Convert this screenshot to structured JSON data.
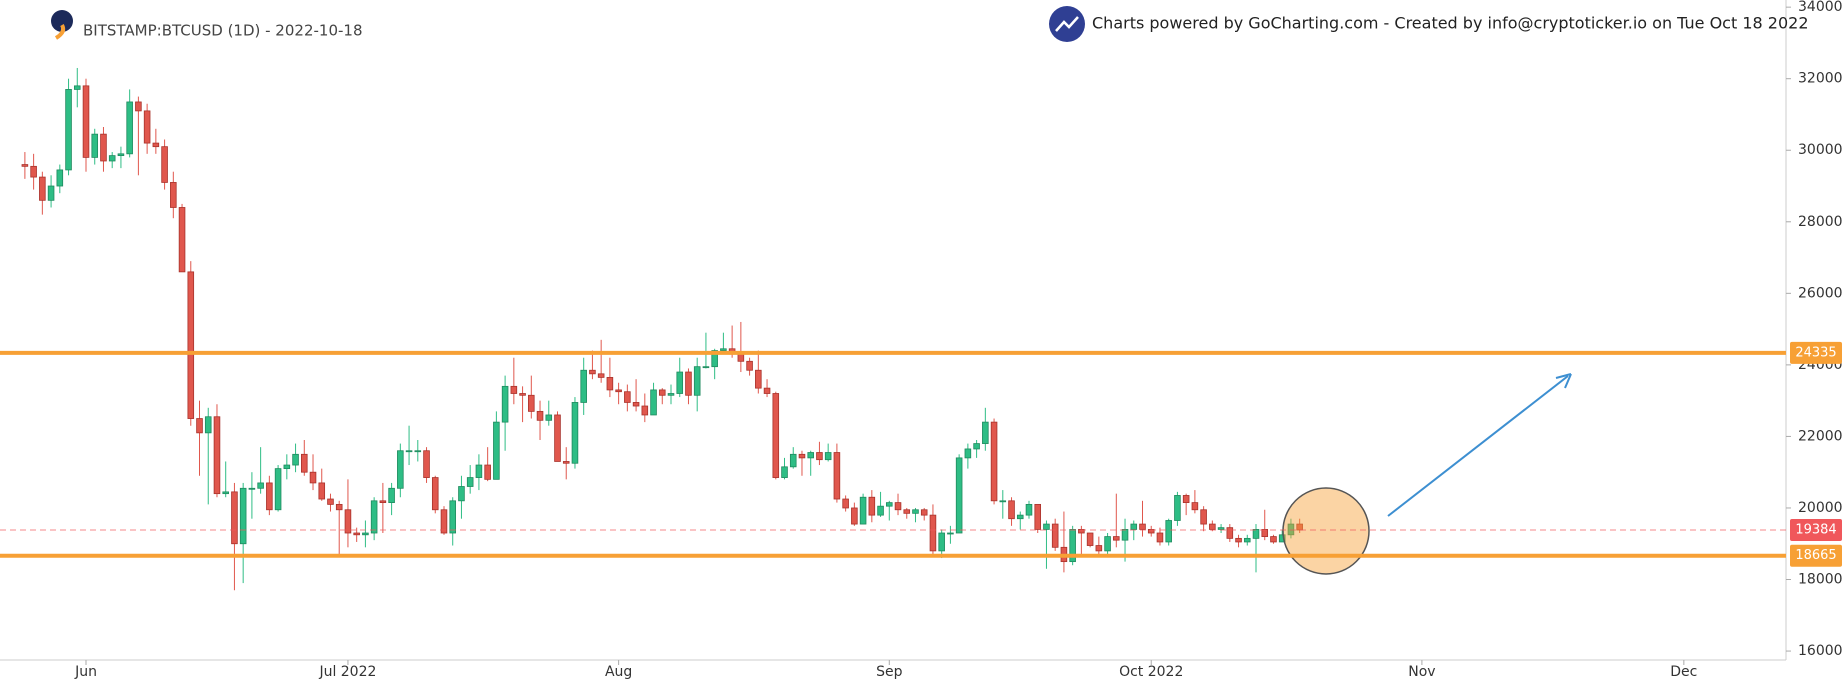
{
  "chart_data": {
    "type": "candlestick",
    "title": "BITSTAMP:BTCUSD (1D) - 2022-10-18",
    "subtitle": "Charts powered by GoCharting.com - Created by info@cryptoticker.io on Tue Oct 18 2022",
    "up_color": "#2ebd85",
    "down_color": "#e0574d",
    "xlim": [
      -2.85,
      201.7
    ],
    "xticks": [
      {
        "value": 7,
        "label": "Jun"
      },
      {
        "value": 37,
        "label": "Jul 2022"
      },
      {
        "value": 68,
        "label": "Aug"
      },
      {
        "value": 99,
        "label": "Sep"
      },
      {
        "value": 129,
        "label": "Oct 2022"
      },
      {
        "value": 160,
        "label": "Nov"
      },
      {
        "value": 190,
        "label": "Dec"
      }
    ],
    "ylim": [
      15750,
      34200
    ],
    "yticks": [
      16000,
      18000,
      20000,
      22000,
      24000,
      26000,
      28000,
      30000,
      32000,
      34000
    ],
    "x": [
      0,
      1,
      2,
      3,
      4,
      5,
      6,
      7,
      8,
      9,
      10,
      11,
      12,
      13,
      14,
      15,
      16,
      17,
      18,
      19,
      20,
      21,
      22,
      23,
      24,
      25,
      26,
      27,
      28,
      29,
      30,
      31,
      32,
      33,
      34,
      35,
      36,
      37,
      38,
      39,
      40,
      41,
      42,
      43,
      44,
      45,
      46,
      47,
      48,
      49,
      50,
      51,
      52,
      53,
      54,
      55,
      56,
      57,
      58,
      59,
      60,
      61,
      62,
      63,
      64,
      65,
      66,
      67,
      68,
      69,
      70,
      71,
      72,
      73,
      74,
      75,
      76,
      77,
      78,
      79,
      80,
      81,
      82,
      83,
      84,
      85,
      86,
      87,
      88,
      89,
      90,
      91,
      92,
      93,
      94,
      95,
      96,
      97,
      98,
      99,
      100,
      101,
      102,
      103,
      104,
      105,
      106,
      107,
      108,
      109,
      110,
      111,
      112,
      113,
      114,
      115,
      116,
      117,
      118,
      119,
      120,
      121,
      122,
      123,
      124,
      125,
      126,
      127,
      128,
      129,
      130,
      131,
      132,
      133,
      134,
      135,
      136,
      137,
      138,
      139,
      140,
      141,
      142,
      143,
      144,
      145,
      146
    ],
    "open": [
      29600,
      29550,
      29250,
      28600,
      29000,
      29450,
      31700,
      31800,
      29800,
      30450,
      29700,
      29850,
      29900,
      31350,
      31100,
      30200,
      30100,
      29100,
      28400,
      26600,
      22500,
      22100,
      22550,
      20400,
      20450,
      19000,
      20550,
      20550,
      20700,
      19950,
      21100,
      21200,
      21500,
      21000,
      20700,
      20250,
      20100,
      19950,
      19300,
      19250,
      19300,
      20200,
      20150,
      20550,
      21600,
      21600,
      21600,
      20850,
      19950,
      19300,
      20200,
      20600,
      20850,
      21200,
      20800,
      22400,
      23400,
      23200,
      23150,
      22700,
      22450,
      22600,
      21300,
      21250,
      22950,
      23850,
      23750,
      23650,
      23300,
      23250,
      22950,
      22850,
      22600,
      23300,
      23150,
      23200,
      23800,
      23150,
      23950,
      23950,
      24400,
      24450,
      24300,
      24100,
      23850,
      23350,
      23200,
      20850,
      21150,
      21500,
      21400,
      21550,
      21350,
      21550,
      20250,
      20000,
      19550,
      20300,
      19800,
      20050,
      20150,
      19950,
      19850,
      19950,
      19800,
      18800,
      19300,
      19300,
      21400,
      21650,
      21800,
      22400,
      20200,
      20200,
      19700,
      19800,
      20100,
      19400,
      19550,
      18900,
      18500,
      19400,
      19300,
      18950,
      18800,
      19200,
      19100,
      19400,
      19550,
      19400,
      19300,
      19050,
      19650,
      20350,
      20150,
      19950,
      19550,
      19400,
      19450,
      19150,
      19050,
      19150,
      19400,
      19200,
      19050,
      19250,
      19550
    ],
    "high": [
      29950,
      29900,
      29400,
      29300,
      29600,
      32000,
      32300,
      32000,
      30600,
      30650,
      29950,
      30100,
      31700,
      31500,
      31300,
      30600,
      30300,
      29400,
      28500,
      26900,
      23000,
      22800,
      22900,
      21300,
      20700,
      20700,
      21000,
      21700,
      20900,
      21200,
      21500,
      21800,
      21900,
      21500,
      21100,
      20400,
      20200,
      20800,
      19450,
      19650,
      20300,
      20700,
      20700,
      21800,
      22300,
      21900,
      21700,
      20900,
      20050,
      20300,
      20900,
      21200,
      21500,
      21700,
      22700,
      23700,
      24200,
      23400,
      23700,
      23000,
      23000,
      22700,
      21700,
      23100,
      24200,
      24400,
      24700,
      24200,
      23500,
      23450,
      23600,
      23200,
      23500,
      23350,
      23450,
      24200,
      23900,
      24200,
      24900,
      24450,
      24900,
      25100,
      25200,
      24200,
      24400,
      23600,
      23250,
      21400,
      21700,
      21600,
      21600,
      21850,
      21800,
      21800,
      20350,
      20150,
      20400,
      20500,
      20450,
      20200,
      20400,
      20000,
      20000,
      20000,
      20100,
      19400,
      19500,
      21500,
      21800,
      21900,
      22800,
      22500,
      20500,
      20300,
      19900,
      20200,
      20100,
      19650,
      19700,
      19900,
      19500,
      19500,
      19300,
      19200,
      19300,
      20400,
      19700,
      19650,
      20200,
      19500,
      19450,
      19700,
      20450,
      20400,
      20500,
      20050,
      19650,
      19550,
      19550,
      19250,
      19250,
      19550,
      19950,
      19250,
      19400,
      19700,
      19700
    ],
    "low": [
      29200,
      28900,
      28200,
      28400,
      28800,
      29300,
      31200,
      29400,
      29600,
      29400,
      29500,
      29500,
      29800,
      29300,
      29900,
      29900,
      28900,
      28100,
      26600,
      22300,
      20900,
      20100,
      20300,
      20300,
      17700,
      17900,
      19700,
      20400,
      19800,
      19900,
      20800,
      21000,
      20900,
      20500,
      20200,
      19900,
      18700,
      18900,
      19050,
      18900,
      19100,
      19300,
      19800,
      20300,
      21200,
      21300,
      20700,
      19850,
      19250,
      18950,
      19700,
      20400,
      20500,
      20750,
      20800,
      21600,
      22900,
      22400,
      22500,
      21900,
      22300,
      21300,
      20800,
      21100,
      22600,
      23600,
      23500,
      23100,
      22900,
      22700,
      22700,
      22400,
      22600,
      22900,
      22900,
      23100,
      22900,
      22700,
      23900,
      23600,
      24300,
      24200,
      23800,
      23700,
      23200,
      23100,
      20800,
      20800,
      21100,
      20900,
      20900,
      21200,
      21300,
      20150,
      19900,
      19500,
      19550,
      19600,
      19750,
      19650,
      19800,
      19700,
      19600,
      19650,
      18700,
      18600,
      19000,
      19300,
      21100,
      21400,
      21600,
      20100,
      19700,
      19500,
      19400,
      19700,
      19300,
      18300,
      18800,
      18200,
      18400,
      18700,
      18900,
      18700,
      18700,
      18900,
      18500,
      19100,
      19200,
      19200,
      18950,
      18950,
      19500,
      19800,
      19850,
      19350,
      19350,
      19300,
      19050,
      18900,
      18950,
      18200,
      19100,
      19000,
      19050,
      19150,
      19300
    ],
    "close": [
      29550,
      29250,
      28600,
      29000,
      29450,
      31700,
      31800,
      29800,
      30450,
      29700,
      29850,
      29900,
      31350,
      31100,
      30200,
      30100,
      29100,
      28400,
      26600,
      22500,
      22100,
      22550,
      20400,
      20450,
      19000,
      20550,
      20550,
      20700,
      19950,
      21100,
      21200,
      21500,
      21000,
      20700,
      20250,
      20100,
      19950,
      19300,
      19250,
      19300,
      20200,
      20150,
      20550,
      21600,
      21600,
      21600,
      20850,
      19950,
      19300,
      20200,
      20600,
      20850,
      21200,
      20800,
      22400,
      23400,
      23200,
      23150,
      22700,
      22450,
      22600,
      21300,
      21250,
      22950,
      23850,
      23750,
      23650,
      23300,
      23250,
      22950,
      22850,
      22600,
      23300,
      23150,
      23200,
      23800,
      23150,
      23950,
      23950,
      24400,
      24450,
      24300,
      24100,
      23850,
      23350,
      23200,
      20850,
      21150,
      21500,
      21400,
      21550,
      21350,
      21550,
      20250,
      20000,
      19550,
      20300,
      19800,
      20050,
      20150,
      19950,
      19850,
      19950,
      19800,
      18800,
      19300,
      19300,
      21400,
      21650,
      21800,
      22400,
      20200,
      20200,
      19700,
      19800,
      20100,
      19400,
      19550,
      18900,
      18500,
      19400,
      19300,
      18950,
      18800,
      19200,
      19100,
      19400,
      19550,
      19400,
      19300,
      19050,
      19650,
      20350,
      20150,
      19950,
      19550,
      19400,
      19450,
      19150,
      19050,
      19150,
      19400,
      19200,
      19050,
      19250,
      19550,
      19384
    ],
    "levels": [
      {
        "value": 24335,
        "color": "#f7a035"
      },
      {
        "value": 18665,
        "color": "#f7a035"
      }
    ],
    "last_price": {
      "value": 19384,
      "color": "#f0575b"
    }
  }
}
